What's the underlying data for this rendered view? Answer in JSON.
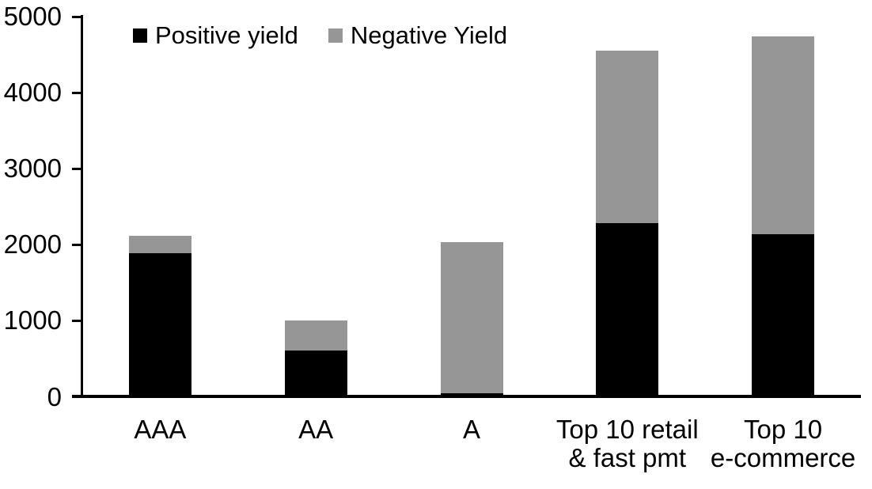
{
  "chart_data": {
    "type": "bar",
    "stacked": true,
    "title": "",
    "xlabel": "",
    "ylabel": "",
    "categories": [
      "AAA",
      "AA",
      "A",
      "Top 10 retail\n& fast pmt",
      "Top 10\ne-commerce"
    ],
    "series": [
      {
        "name": "Positive yield",
        "color": "#000000",
        "values": [
          1890,
          610,
          50,
          2280,
          2140
        ]
      },
      {
        "name": "Negative Yield",
        "color": "#969696",
        "values": [
          230,
          390,
          1980,
          2270,
          2600
        ]
      }
    ],
    "totals": [
      2120,
      1000,
      2030,
      4550,
      4740
    ],
    "ylim": [
      0,
      5000
    ],
    "yticks": [
      0,
      1000,
      2000,
      3000,
      4000,
      5000
    ],
    "grid": false,
    "legend_position": "top-left-inside",
    "axis_color": "#000000",
    "background_color": "#FFFFFF"
  }
}
